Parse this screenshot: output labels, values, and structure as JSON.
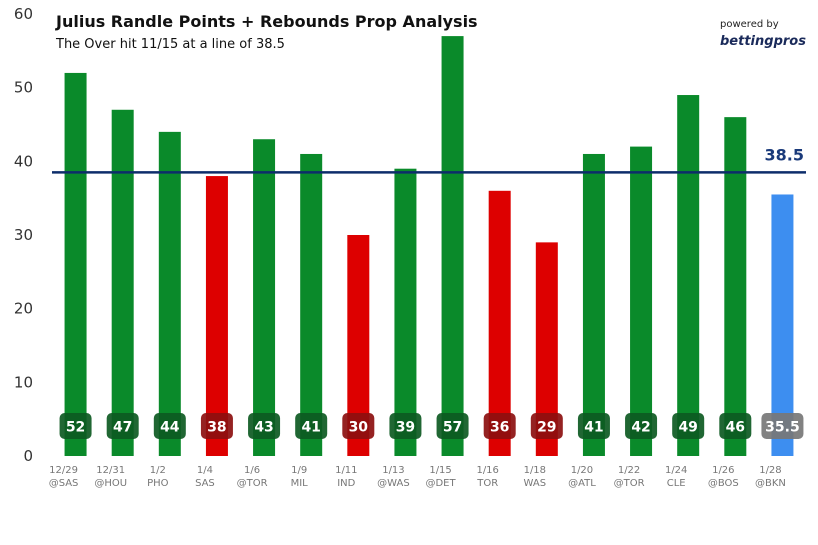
{
  "chart_data": {
    "type": "bar",
    "title": "Julius Randle Points + Rebounds Prop Analysis",
    "subtitle": "The Over hit 11/15 at a line of 38.5",
    "categories": [
      {
        "date": "12/29",
        "opp": "@SAS"
      },
      {
        "date": "12/31",
        "opp": "@HOU"
      },
      {
        "date": "1/2",
        "opp": "PHO"
      },
      {
        "date": "1/4",
        "opp": "SAS"
      },
      {
        "date": "1/6",
        "opp": "@TOR"
      },
      {
        "date": "1/9",
        "opp": "MIL"
      },
      {
        "date": "1/11",
        "opp": "IND"
      },
      {
        "date": "1/13",
        "opp": "@WAS"
      },
      {
        "date": "1/15",
        "opp": "@DET"
      },
      {
        "date": "1/16",
        "opp": "TOR"
      },
      {
        "date": "1/18",
        "opp": "WAS"
      },
      {
        "date": "1/20",
        "opp": "@ATL"
      },
      {
        "date": "1/22",
        "opp": "@TOR"
      },
      {
        "date": "1/24",
        "opp": "CLE"
      },
      {
        "date": "1/26",
        "opp": "@BOS"
      },
      {
        "date": "1/28",
        "opp": "@BKN"
      }
    ],
    "values": [
      52,
      47,
      44,
      38,
      43,
      41,
      30,
      39,
      57,
      36,
      29,
      41,
      42,
      49,
      46,
      35.5
    ],
    "value_labels": [
      "52",
      "47",
      "44",
      "38",
      "43",
      "41",
      "30",
      "39",
      "57",
      "36",
      "29",
      "41",
      "42",
      "49",
      "46",
      "35.5"
    ],
    "bar_status": [
      "over",
      "over",
      "over",
      "under",
      "over",
      "over",
      "under",
      "over",
      "over",
      "under",
      "under",
      "over",
      "over",
      "over",
      "over",
      "projection"
    ],
    "line": {
      "value": 38.5,
      "label": "38.5",
      "color": "#0d2d6b"
    },
    "ylim": [
      0,
      60
    ],
    "yticks": [
      0,
      10,
      20,
      30,
      40,
      50,
      60
    ],
    "xlabel": "",
    "ylabel": "",
    "grid": false,
    "colors": {
      "over": "#0a8a2a",
      "under": "#dd0000",
      "projection": "#3d8ef0",
      "badge_over": "#0d5a22",
      "badge_under": "#8c0f0f",
      "badge_projection": "#777777"
    }
  },
  "branding": {
    "powered_by": "powered by",
    "brand": "bettingpros"
  }
}
